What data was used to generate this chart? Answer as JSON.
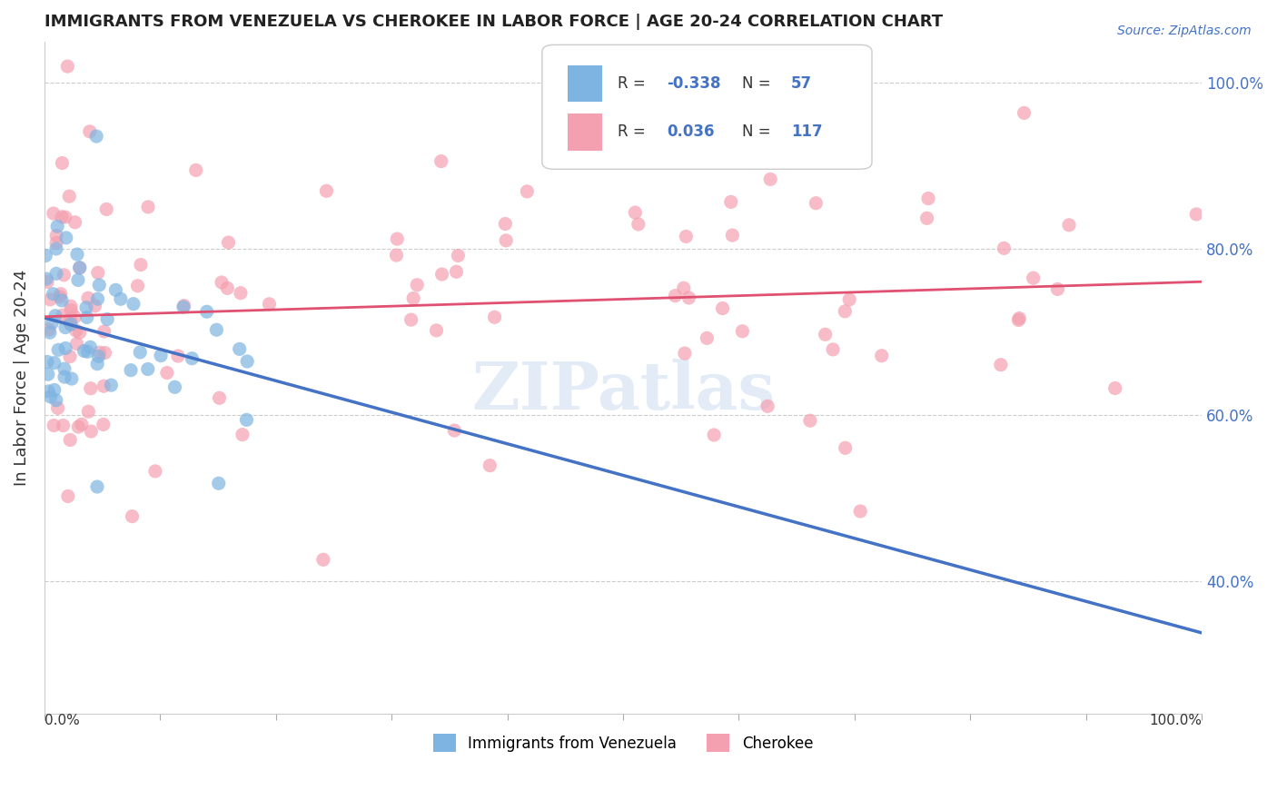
{
  "title": "IMMIGRANTS FROM VENEZUELA VS CHEROKEE IN LABOR FORCE | AGE 20-24 CORRELATION CHART",
  "source_text": "Source: ZipAtlas.com",
  "ylabel": "In Labor Force | Age 20-24",
  "xlim": [
    0.0,
    1.0
  ],
  "ylim": [
    0.24,
    1.05
  ],
  "background_color": "#ffffff",
  "grid_color": "#cccccc",
  "watermark": "ZIPatlas",
  "color_blue": "#7eb4e2",
  "color_pink": "#f4a0b0",
  "color_blue_line": "#4472c4",
  "color_pink_line": "#e05070",
  "label_venezuela": "Immigrants from Venezuela",
  "label_cherokee": "Cherokee",
  "yticks": [
    0.4,
    0.6,
    0.8,
    1.0
  ],
  "ytick_labels": [
    "40.0%",
    "60.0%",
    "80.0%",
    "100.0%"
  ]
}
